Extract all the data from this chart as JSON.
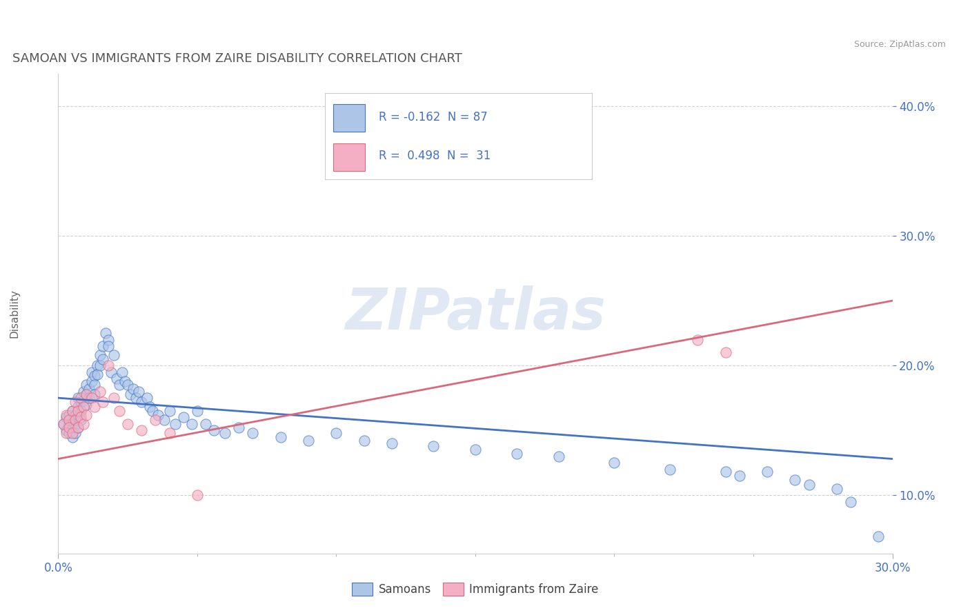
{
  "title": "SAMOAN VS IMMIGRANTS FROM ZAIRE DISABILITY CORRELATION CHART",
  "source_text": "Source: ZipAtlas.com",
  "ylabel": "Disability",
  "xlim": [
    0.0,
    0.3
  ],
  "ylim": [
    0.055,
    0.425
  ],
  "ytick_values": [
    0.1,
    0.2,
    0.3,
    0.4
  ],
  "xtick_values": [
    0.0,
    0.3
  ],
  "samoan_color": "#adc6e8",
  "zaire_color": "#f4afc4",
  "samoan_line_color": "#4472c4",
  "zaire_line_color": "#d9687a",
  "legend_text_color": "#4472c4",
  "legend_R_samoan": "-0.162",
  "legend_N_samoan": "87",
  "legend_R_zaire": "0.498",
  "legend_N_zaire": "31",
  "background_color": "#ffffff",
  "grid_color": "#cccccc",
  "watermark": "ZIPatlas",
  "title_color": "#555555",
  "axis_label_color": "#666666",
  "tick_color": "#4472c4",
  "samoan_line_y0": 0.175,
  "samoan_line_y1": 0.128,
  "zaire_line_y0": 0.128,
  "zaire_line_y1": 0.25,
  "samoan_scatter_x": [
    0.002,
    0.003,
    0.003,
    0.004,
    0.004,
    0.004,
    0.005,
    0.005,
    0.005,
    0.005,
    0.006,
    0.006,
    0.006,
    0.007,
    0.007,
    0.007,
    0.007,
    0.008,
    0.008,
    0.008,
    0.009,
    0.009,
    0.01,
    0.01,
    0.01,
    0.011,
    0.011,
    0.012,
    0.012,
    0.013,
    0.013,
    0.013,
    0.014,
    0.014,
    0.015,
    0.015,
    0.016,
    0.016,
    0.017,
    0.018,
    0.018,
    0.019,
    0.02,
    0.021,
    0.022,
    0.023,
    0.024,
    0.025,
    0.026,
    0.027,
    0.028,
    0.029,
    0.03,
    0.032,
    0.033,
    0.034,
    0.036,
    0.038,
    0.04,
    0.042,
    0.045,
    0.048,
    0.05,
    0.053,
    0.056,
    0.06,
    0.065,
    0.07,
    0.08,
    0.09,
    0.1,
    0.11,
    0.12,
    0.135,
    0.15,
    0.165,
    0.18,
    0.2,
    0.22,
    0.24,
    0.245,
    0.255,
    0.265,
    0.27,
    0.28,
    0.285,
    0.295
  ],
  "samoan_scatter_y": [
    0.155,
    0.16,
    0.15,
    0.162,
    0.155,
    0.148,
    0.165,
    0.158,
    0.152,
    0.145,
    0.162,
    0.155,
    0.148,
    0.175,
    0.168,
    0.16,
    0.152,
    0.172,
    0.165,
    0.158,
    0.18,
    0.173,
    0.185,
    0.178,
    0.17,
    0.182,
    0.175,
    0.195,
    0.188,
    0.192,
    0.185,
    0.178,
    0.2,
    0.193,
    0.208,
    0.2,
    0.215,
    0.205,
    0.225,
    0.22,
    0.215,
    0.195,
    0.208,
    0.19,
    0.185,
    0.195,
    0.188,
    0.185,
    0.178,
    0.182,
    0.175,
    0.18,
    0.172,
    0.175,
    0.168,
    0.165,
    0.162,
    0.158,
    0.165,
    0.155,
    0.16,
    0.155,
    0.165,
    0.155,
    0.15,
    0.148,
    0.152,
    0.148,
    0.145,
    0.142,
    0.148,
    0.142,
    0.14,
    0.138,
    0.135,
    0.132,
    0.13,
    0.125,
    0.12,
    0.118,
    0.115,
    0.118,
    0.112,
    0.108,
    0.105,
    0.095,
    0.068
  ],
  "zaire_scatter_x": [
    0.002,
    0.003,
    0.003,
    0.004,
    0.004,
    0.005,
    0.005,
    0.006,
    0.006,
    0.007,
    0.007,
    0.008,
    0.008,
    0.009,
    0.009,
    0.01,
    0.01,
    0.012,
    0.013,
    0.015,
    0.016,
    0.018,
    0.02,
    0.022,
    0.025,
    0.03,
    0.035,
    0.04,
    0.05,
    0.23,
    0.24
  ],
  "zaire_scatter_y": [
    0.155,
    0.148,
    0.162,
    0.158,
    0.152,
    0.165,
    0.148,
    0.172,
    0.158,
    0.165,
    0.152,
    0.175,
    0.16,
    0.168,
    0.155,
    0.178,
    0.162,
    0.175,
    0.168,
    0.18,
    0.172,
    0.2,
    0.175,
    0.165,
    0.155,
    0.15,
    0.158,
    0.148,
    0.1,
    0.22,
    0.21
  ]
}
